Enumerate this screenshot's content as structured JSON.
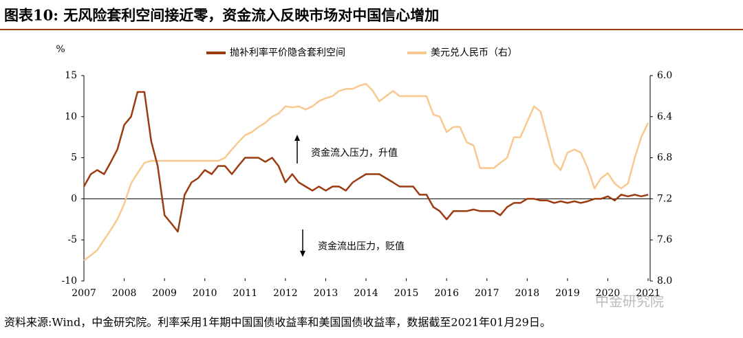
{
  "header": {
    "title": "图表10: 无风险套利空间接近零，资金流入反映市场对中国信心增加"
  },
  "chart_data": {
    "type": "line",
    "y_unit": "%",
    "x": [
      2007,
      2007.17,
      2007.33,
      2007.5,
      2007.67,
      2007.83,
      2008,
      2008.17,
      2008.33,
      2008.5,
      2008.67,
      2008.83,
      2009,
      2009.17,
      2009.33,
      2009.5,
      2009.67,
      2009.83,
      2010,
      2010.17,
      2010.33,
      2010.5,
      2010.67,
      2010.83,
      2011,
      2011.17,
      2011.33,
      2011.5,
      2011.67,
      2011.83,
      2012,
      2012.17,
      2012.33,
      2012.5,
      2012.67,
      2012.83,
      2013,
      2013.17,
      2013.33,
      2013.5,
      2013.67,
      2013.83,
      2014,
      2014.17,
      2014.33,
      2014.5,
      2014.67,
      2014.83,
      2015,
      2015.17,
      2015.33,
      2015.5,
      2015.67,
      2015.83,
      2016,
      2016.17,
      2016.33,
      2016.5,
      2016.67,
      2016.83,
      2017,
      2017.17,
      2017.33,
      2017.5,
      2017.67,
      2017.83,
      2018,
      2018.17,
      2018.33,
      2018.5,
      2018.67,
      2018.83,
      2019,
      2019.17,
      2019.33,
      2019.5,
      2019.67,
      2019.83,
      2020,
      2020.17,
      2020.33,
      2020.5,
      2020.67,
      2020.83,
      2021
    ],
    "series": [
      {
        "name": "抛补利率平价隐含套利空间",
        "color": "#9c3a10",
        "values": [
          1.5,
          3,
          3.5,
          3,
          4.5,
          6,
          9,
          10,
          13,
          13,
          7,
          4,
          -2,
          -3,
          -4,
          0.5,
          2,
          2.5,
          3.5,
          3,
          4,
          4,
          3,
          4,
          5,
          5,
          5,
          4.5,
          5,
          4,
          2,
          3,
          2,
          1.5,
          1,
          1.5,
          1,
          1.5,
          1.5,
          1,
          2,
          2.5,
          3,
          3,
          3,
          2.5,
          2,
          1.5,
          1.5,
          1.5,
          0.5,
          0.5,
          -1,
          -1.5,
          -2.5,
          -1.5,
          -1.5,
          -1.5,
          -1.3,
          -1.5,
          -1.5,
          -1.5,
          -2,
          -1,
          -0.5,
          -0.5,
          0,
          0,
          -0.2,
          -0.2,
          -0.5,
          -0.3,
          -0.5,
          -0.3,
          -0.5,
          -0.3,
          0,
          0,
          0.3,
          -0.2,
          0.5,
          0.3,
          0.5,
          0.3,
          0.5
        ]
      },
      {
        "name": "美元兑人民币（右）",
        "color": "#f9c88f",
        "axis": "y2",
        "values": [
          7.8,
          7.75,
          7.7,
          7.6,
          7.5,
          7.4,
          7.25,
          7.05,
          6.95,
          6.85,
          6.83,
          6.83,
          6.83,
          6.83,
          6.83,
          6.83,
          6.83,
          6.83,
          6.83,
          6.83,
          6.83,
          6.8,
          6.72,
          6.65,
          6.58,
          6.55,
          6.5,
          6.46,
          6.4,
          6.37,
          6.3,
          6.31,
          6.3,
          6.33,
          6.3,
          6.25,
          6.22,
          6.2,
          6.15,
          6.13,
          6.13,
          6.1,
          6.08,
          6.15,
          6.25,
          6.2,
          6.15,
          6.2,
          6.2,
          6.2,
          6.2,
          6.2,
          6.38,
          6.4,
          6.55,
          6.5,
          6.5,
          6.65,
          6.68,
          6.9,
          6.9,
          6.9,
          6.85,
          6.8,
          6.6,
          6.6,
          6.45,
          6.3,
          6.35,
          6.6,
          6.85,
          6.92,
          6.75,
          6.72,
          6.75,
          6.9,
          7.1,
          7.0,
          6.95,
          7.05,
          7.1,
          7.05,
          6.8,
          6.6,
          6.46
        ]
      }
    ],
    "xlim": [
      2007,
      2021.05
    ],
    "xticks": [
      2007,
      2008,
      2009,
      2010,
      2011,
      2012,
      2013,
      2014,
      2015,
      2016,
      2017,
      2018,
      2019,
      2020,
      2021
    ],
    "ylim": [
      -10,
      15
    ],
    "yticks": [
      -10,
      -5,
      0,
      5,
      10,
      15
    ],
    "y2lim": [
      6,
      8
    ],
    "y2_inverted": true,
    "y2ticks": [
      {
        "value": 6,
        "label": "6.0"
      },
      6.4,
      6.8,
      7.2,
      7.6,
      {
        "value": 8,
        "label": "8.0"
      }
    ],
    "annotations": [
      "资金流入压力，升值",
      "资金流出压力，贬值"
    ]
  },
  "footer": {
    "source": "资料来源:Wind，中金研究院。利率采用1年期中国国债收益率和美国国债收益率，数据截至2021年01月29日。",
    "watermark": "中金研究院"
  }
}
